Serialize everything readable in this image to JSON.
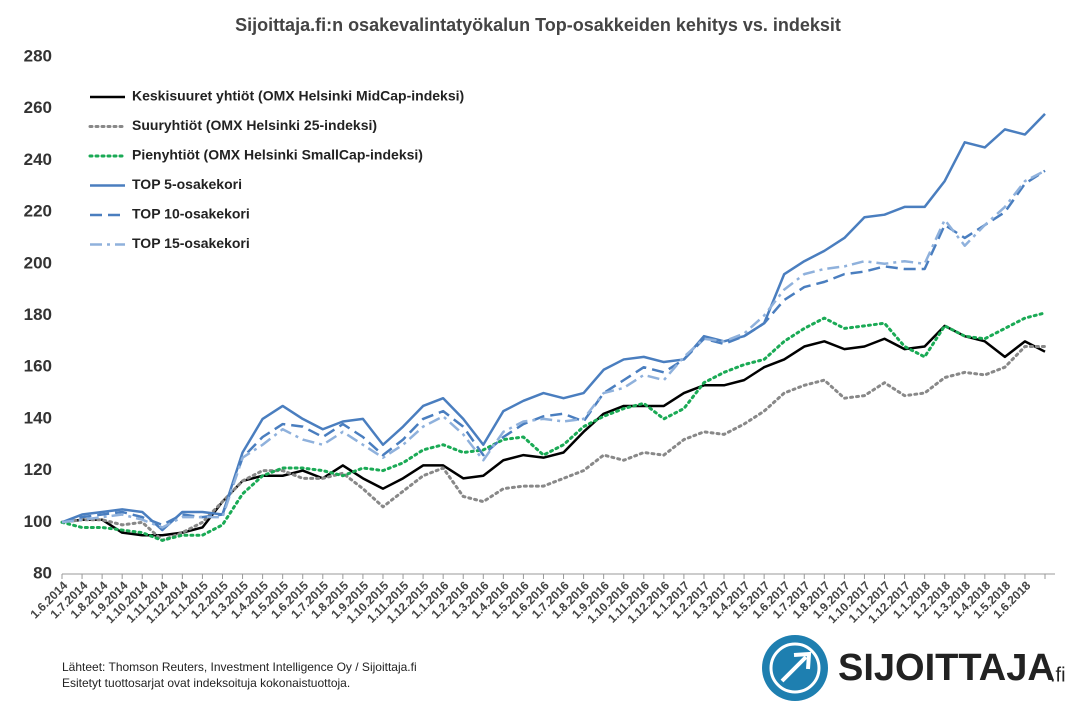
{
  "chart_data": {
    "type": "line",
    "title": "Sijoittaja.fi:n osakevalintatyökalun Top-osakkeiden kehitys vs. indeksit",
    "categories": [
      "1.6.2014",
      "1.7.2014",
      "1.8.2014",
      "1.9.2014",
      "1.10.2014",
      "1.11.2014",
      "1.12.2014",
      "1.1.2015",
      "1.2.2015",
      "1.3.2015",
      "1.4.2015",
      "1.5.2015",
      "1.6.2015",
      "1.7.2015",
      "1.8.2015",
      "1.9.2015",
      "1.10.2015",
      "1.11.2015",
      "1.12.2015",
      "1.1.2016",
      "1.2.2016",
      "1.3.2016",
      "1.4.2016",
      "1.5.2016",
      "1.6.2016",
      "1.7.2016",
      "1.8.2016",
      "1.9.2016",
      "1.10.2016",
      "1.11.2016",
      "1.12.2016",
      "1.1.2017",
      "1.2.2017",
      "1.3.2017",
      "1.4.2017",
      "1.5.2017",
      "1.6.2017",
      "1.7.2017",
      "1.8.2017",
      "1.9.2017",
      "1.10.2017",
      "1.11.2017",
      "1.12.2017",
      "1.1.2018",
      "1.2.2018",
      "1.3.2018",
      "1.4.2018",
      "1.5.2018",
      "1.6.2018",
      null
    ],
    "series": [
      {
        "name": "Keskisuuret yhtiöt (OMX Helsinki MidCap-indeksi)",
        "color": "#000000",
        "style": "solid",
        "values": [
          100,
          101,
          101,
          96,
          95,
          95,
          96,
          98,
          108,
          116,
          118,
          118,
          120,
          117,
          122,
          117,
          113,
          117,
          122,
          122,
          117,
          118,
          124,
          126,
          125,
          127,
          135,
          142,
          145,
          145,
          145,
          150,
          153,
          153,
          155,
          160,
          163,
          168,
          170,
          167,
          168,
          171,
          167,
          168,
          176,
          172,
          170,
          164,
          170,
          166
        ]
      },
      {
        "name": "Suuryhtiöt (OMX Helsinki 25-indeksi)",
        "color": "#888888",
        "style": "dotted",
        "values": [
          100,
          101,
          101,
          99,
          100,
          93,
          96,
          100,
          108,
          116,
          120,
          120,
          117,
          117,
          119,
          113,
          106,
          112,
          118,
          121,
          110,
          108,
          113,
          114,
          114,
          117,
          120,
          126,
          124,
          127,
          126,
          132,
          135,
          134,
          138,
          143,
          150,
          153,
          155,
          148,
          149,
          154,
          149,
          150,
          156,
          158,
          157,
          160,
          168,
          168
        ]
      },
      {
        "name": "Pienyhtiöt (OMX Helsinki SmallCap-indeksi)",
        "color": "#1aaa55",
        "style": "dotted",
        "values": [
          100,
          98,
          98,
          97,
          96,
          93,
          95,
          95,
          99,
          111,
          118,
          121,
          121,
          120,
          118,
          121,
          120,
          123,
          128,
          130,
          127,
          128,
          132,
          133,
          126,
          130,
          137,
          141,
          144,
          146,
          140,
          144,
          154,
          158,
          161,
          163,
          170,
          175,
          179,
          175,
          176,
          177,
          168,
          164,
          176,
          172,
          171,
          175,
          179,
          181
        ]
      },
      {
        "name": "TOP 5-osakekori",
        "color": "#4a7ebf",
        "style": "solid",
        "values": [
          100,
          103,
          104,
          105,
          104,
          97,
          104,
          104,
          103,
          127,
          140,
          145,
          140,
          136,
          139,
          140,
          130,
          137,
          145,
          148,
          140,
          130,
          143,
          147,
          150,
          148,
          150,
          159,
          163,
          164,
          162,
          163,
          172,
          170,
          172,
          177,
          196,
          201,
          205,
          210,
          218,
          219,
          222,
          222,
          232,
          247,
          245,
          252,
          250,
          258
        ]
      },
      {
        "name": "TOP 10-osakekori",
        "color": "#4a7ebf",
        "style": "dashed",
        "values": [
          100,
          102,
          103,
          104,
          102,
          99,
          103,
          102,
          103,
          125,
          133,
          138,
          137,
          133,
          138,
          133,
          126,
          132,
          140,
          143,
          137,
          126,
          133,
          138,
          141,
          142,
          139,
          150,
          155,
          160,
          158,
          163,
          171,
          169,
          172,
          177,
          186,
          191,
          193,
          196,
          197,
          199,
          198,
          198,
          215,
          210,
          215,
          220,
          231,
          236
        ]
      },
      {
        "name": "TOP 15-osakekori",
        "color": "#8fb1dc",
        "style": "dashdot",
        "values": [
          100,
          101,
          102,
          103,
          101,
          98,
          102,
          102,
          102,
          125,
          130,
          136,
          132,
          130,
          135,
          130,
          125,
          130,
          137,
          141,
          134,
          124,
          135,
          139,
          140,
          139,
          140,
          150,
          152,
          157,
          155,
          164,
          171,
          170,
          173,
          180,
          190,
          196,
          198,
          199,
          201,
          200,
          201,
          200,
          217,
          207,
          215,
          222,
          232,
          236
        ]
      }
    ],
    "ylim": [
      80,
      280
    ],
    "yticks": [
      80,
      100,
      120,
      140,
      160,
      180,
      200,
      220,
      240,
      260,
      280
    ],
    "grid": false,
    "legend": "top-left"
  },
  "footnotes": [
    "Lähteet: Thomson Reuters, Investment Intelligence Oy / Sijoittaja.fi",
    "Esitetyt tuottosarjat ovat indeksoituja kokonaistuottoja."
  ],
  "logo": {
    "name": "SIJOITTAJA",
    "suffix": ".fi"
  }
}
